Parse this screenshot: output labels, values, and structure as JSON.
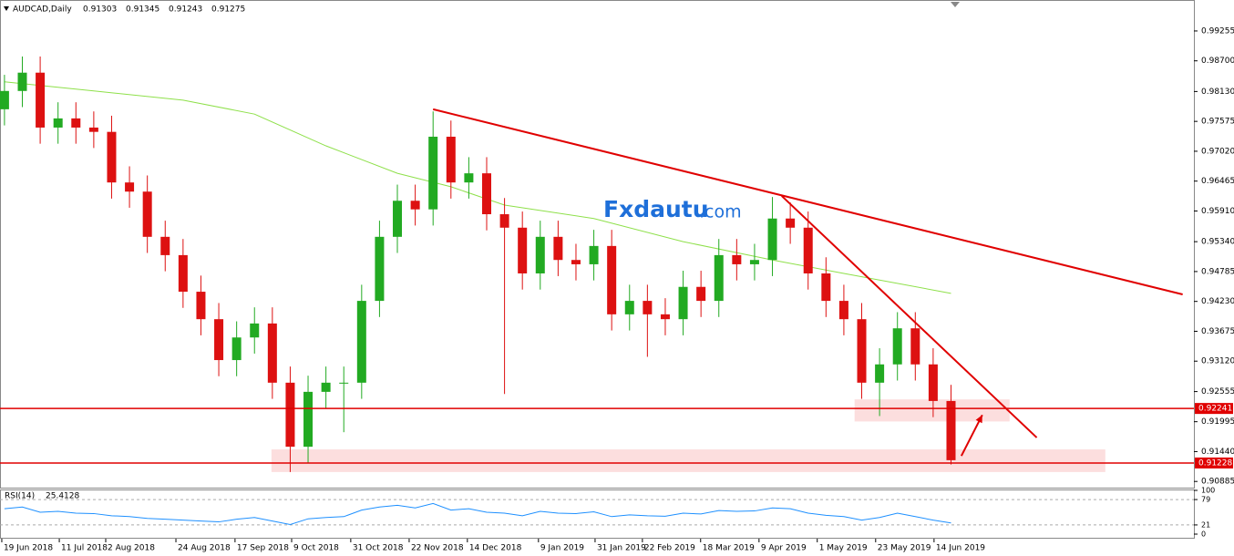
{
  "chart_data": {
    "type": "candlestick",
    "symbol": "AUDCAD,Daily",
    "quote": [
      0.91303,
      0.91345,
      0.91243,
      0.91275
    ],
    "watermark": [
      "Fxdautu",
      ".com"
    ],
    "xlim": [
      -0.25,
      66.6
    ],
    "ylim": [
      0.9077,
      0.9983
    ],
    "yticks": [
      0.99255,
      {
        "value": 0.987,
        "label": "0.98700"
      },
      {
        "value": 0.9813,
        "label": "0.98130"
      },
      0.97575,
      {
        "value": 0.9702,
        "label": "0.97020"
      },
      0.96465,
      {
        "value": 0.9591,
        "label": "0.95910"
      },
      {
        "value": 0.9534,
        "label": "0.95340"
      },
      0.94785,
      {
        "value": 0.9423,
        "label": "0.94230"
      },
      0.93675,
      {
        "value": 0.9312,
        "label": "0.93120"
      },
      0.92555,
      0.91995,
      {
        "value": 0.9144,
        "label": "0.91440"
      },
      0.90885
    ],
    "xticks": [
      {
        "value": -0.15,
        "label": "19 Jun 2018"
      },
      {
        "value": 3.07,
        "label": "11 Jul 2018"
      },
      {
        "value": 5.67,
        "label": "2 Aug 2018"
      },
      {
        "value": 9.6,
        "label": "24 Aug 2018"
      },
      {
        "value": 12.91,
        "label": "17 Sep 2018"
      },
      {
        "value": 16.08,
        "label": "9 Oct 2018"
      },
      {
        "value": 19.39,
        "label": "31 Oct 2018"
      },
      {
        "value": 22.66,
        "label": "22 Nov 2018"
      },
      {
        "value": 25.92,
        "label": "14 Dec 2018"
      },
      {
        "value": 29.9,
        "label": "9 Jan 2019"
      },
      {
        "value": 33.07,
        "label": "31 Jan 2019"
      },
      {
        "value": 35.72,
        "label": "22 Feb 2019"
      },
      {
        "value": 38.98,
        "label": "18 Mar 2019"
      },
      {
        "value": 42.25,
        "label": "9 Apr 2019"
      },
      {
        "value": 45.51,
        "label": "1 May 2019"
      },
      {
        "value": 48.78,
        "label": "23 May 2019"
      },
      {
        "value": 52.05,
        "label": "14 Jun 2019"
      }
    ],
    "up_color": "#22aa22",
    "down_color": "#dd1111",
    "candles": [
      [
        0.978,
        0.9844,
        0.975,
        0.9814
      ],
      [
        0.9814,
        0.9878,
        0.9784,
        0.9848
      ],
      [
        0.9848,
        0.9878,
        0.9716,
        0.9746
      ],
      [
        0.9746,
        0.9793,
        0.9716,
        0.9763
      ],
      [
        0.9763,
        0.9793,
        0.9716,
        0.9746
      ],
      [
        0.9746,
        0.9776,
        0.9708,
        0.9738
      ],
      [
        0.9738,
        0.9768,
        0.9614,
        0.9644
      ],
      [
        0.9644,
        0.9674,
        0.9597,
        0.9627
      ],
      [
        0.9627,
        0.9657,
        0.9513,
        0.9543
      ],
      [
        0.9543,
        0.9573,
        0.9479,
        0.9509
      ],
      [
        0.9509,
        0.9539,
        0.9411,
        0.9441
      ],
      [
        0.9441,
        0.9471,
        0.936,
        0.939
      ],
      [
        0.939,
        0.942,
        0.9284,
        0.9314
      ],
      [
        0.9314,
        0.9386,
        0.9284,
        0.9356
      ],
      [
        0.9356,
        0.9412,
        0.9326,
        0.9382
      ],
      [
        0.9382,
        0.9412,
        0.9242,
        0.9272
      ],
      [
        0.9272,
        0.9302,
        0.9106,
        0.9153
      ],
      [
        0.9153,
        0.9285,
        0.9123,
        0.9255
      ],
      [
        0.9255,
        0.9302,
        0.9225,
        0.9272
      ],
      [
        0.9272,
        0.9302,
        0.918,
        0.9272
      ],
      [
        0.9272,
        0.9454,
        0.9242,
        0.9424
      ],
      [
        0.9424,
        0.9573,
        0.9394,
        0.9543
      ],
      [
        0.9543,
        0.964,
        0.9513,
        0.961
      ],
      [
        0.961,
        0.964,
        0.9564,
        0.9594
      ],
      [
        0.9594,
        0.9776,
        0.9564,
        0.9729
      ],
      [
        0.9729,
        0.9759,
        0.9614,
        0.9644
      ],
      [
        0.9644,
        0.9691,
        0.9614,
        0.9661
      ],
      [
        0.9661,
        0.9691,
        0.9555,
        0.9585
      ],
      [
        0.9585,
        0.9615,
        0.9251,
        0.956
      ],
      [
        0.956,
        0.959,
        0.9445,
        0.9475
      ],
      [
        0.9475,
        0.9573,
        0.9445,
        0.9543
      ],
      [
        0.9543,
        0.9573,
        0.947,
        0.95
      ],
      [
        0.95,
        0.953,
        0.9462,
        0.9492
      ],
      [
        0.9492,
        0.9556,
        0.9462,
        0.9526
      ],
      [
        0.9526,
        0.9556,
        0.9369,
        0.9399
      ],
      [
        0.9399,
        0.9454,
        0.9369,
        0.9424
      ],
      [
        0.9424,
        0.9454,
        0.932,
        0.9399
      ],
      [
        0.9399,
        0.9429,
        0.936,
        0.939
      ],
      [
        0.939,
        0.948,
        0.936,
        0.945
      ],
      [
        0.945,
        0.948,
        0.9394,
        0.9424
      ],
      [
        0.9424,
        0.9539,
        0.9394,
        0.9509
      ],
      [
        0.9509,
        0.9539,
        0.9462,
        0.9492
      ],
      [
        0.9492,
        0.953,
        0.9462,
        0.95
      ],
      [
        0.95,
        0.9617,
        0.947,
        0.9577
      ],
      [
        0.9577,
        0.9607,
        0.953,
        0.956
      ],
      [
        0.956,
        0.959,
        0.9445,
        0.9475
      ],
      [
        0.9475,
        0.9505,
        0.9394,
        0.9424
      ],
      [
        0.9424,
        0.9454,
        0.936,
        0.939
      ],
      [
        0.939,
        0.942,
        0.9242,
        0.9272
      ],
      [
        0.9272,
        0.9336,
        0.921,
        0.9306
      ],
      [
        0.9306,
        0.9403,
        0.9276,
        0.9373
      ],
      [
        0.9373,
        0.9403,
        0.9276,
        0.9306
      ],
      [
        0.9306,
        0.9336,
        0.9208,
        0.9238
      ],
      [
        0.9238,
        0.9268,
        0.912,
        0.9128
      ]
    ],
    "ma": {
      "color": "#8ee04a",
      "x": [
        0,
        5,
        10,
        14,
        18,
        22,
        25,
        28,
        33,
        38,
        43,
        47,
        53
      ],
      "values": [
        0.9831,
        0.9814,
        0.9797,
        0.9771,
        0.9712,
        0.9661,
        0.9636,
        0.9602,
        0.9577,
        0.9534,
        0.95,
        0.9475,
        0.9438
      ]
    },
    "levels": [
      {
        "value": 0.92241,
        "color": "#e00000"
      },
      {
        "value": 0.91228,
        "color": "#e00000"
      }
    ],
    "trendlines": [
      {
        "color": "#e00000",
        "x": [
          24,
          65.97
        ],
        "values": [
          0.978,
          0.9436
        ]
      },
      {
        "color": "#e00000",
        "x": [
          43.52,
          57.8
        ],
        "values": [
          0.9619,
          0.917
        ]
      }
    ],
    "zones": [
      {
        "color": "#fbd8d8",
        "x": [
          14.95,
          61.64
        ],
        "values": [
          0.9148,
          0.9106
        ]
      },
      {
        "color": "#fbd8d8",
        "x": [
          47.6,
          56.28
        ],
        "values": [
          0.9241,
          0.92
        ]
      }
    ],
    "arrows": [
      {
        "color": "#e00000",
        "x": [
          53.58,
          54.75
        ],
        "values": [
          0.9136,
          0.9212
        ]
      }
    ],
    "rsi": {
      "label": "RSI(14)",
      "current": 25.4128,
      "color": "#1e90ff",
      "ylim": [
        0,
        100
      ],
      "yticks": [
        100,
        79,
        21,
        0
      ],
      "values": [
        58,
        62,
        50,
        52,
        48,
        47,
        42,
        40,
        36,
        34,
        32,
        30,
        28,
        34,
        38,
        30,
        22,
        35,
        38,
        40,
        55,
        62,
        66,
        60,
        70,
        55,
        58,
        50,
        48,
        42,
        52,
        48,
        47,
        51,
        40,
        44,
        42,
        41,
        48,
        46,
        54,
        52,
        53,
        60,
        58,
        48,
        43,
        40,
        32,
        38,
        48,
        40,
        32,
        25.4128
      ]
    }
  }
}
